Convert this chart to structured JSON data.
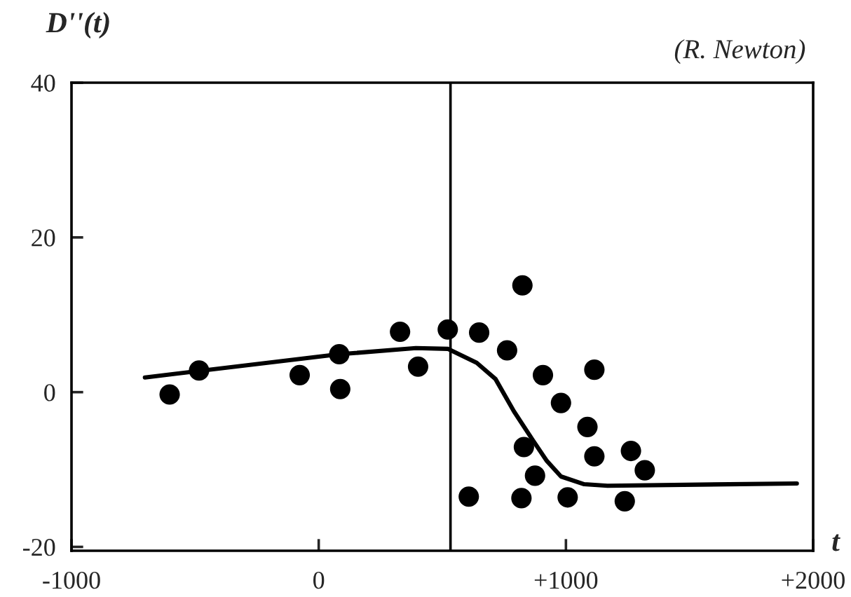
{
  "chart_data": {
    "type": "scatter",
    "ylabel": "D''(t)",
    "xlabel": "t",
    "annotations": [
      "(R. Newton)"
    ],
    "xlim": [
      -1000,
      2000
    ],
    "ylim": [
      -20.5,
      40
    ],
    "xticks": [
      -1000,
      0,
      {
        "value": 1000,
        "label": "+1000"
      },
      {
        "value": 2000,
        "label": "+2000"
      }
    ],
    "yticks": [
      -20,
      0,
      20,
      40
    ],
    "ref_lines": [
      {
        "axis": "x",
        "value": 533,
        "color": "#000000"
      }
    ],
    "series": [
      {
        "color": "#000000",
        "marker": "circle",
        "x": [
          -603,
          -484,
          -77,
          83,
          87,
          329,
          402,
          522,
          607,
          649,
          762,
          820,
          824,
          830,
          875,
          907,
          980,
          1007,
          1087,
          1115,
          1115,
          1238,
          1263,
          1319
        ],
        "values": [
          -0.3,
          2.8,
          2.2,
          4.9,
          0.4,
          7.8,
          3.3,
          8.1,
          -13.5,
          7.7,
          5.4,
          -13.7,
          13.8,
          -7.1,
          -10.8,
          2.2,
          -1.4,
          -13.6,
          -4.5,
          2.9,
          -8.3,
          -14.1,
          -7.6,
          -10.1
        ]
      },
      {
        "type": "line",
        "color": "#000000",
        "marker": "none",
        "line_style": "solid",
        "x": [
          -703,
          83,
          393,
          522,
          639,
          715,
          790,
          866,
          923,
          980,
          1074,
          1168,
          1934
        ],
        "values": [
          1.9,
          4.9,
          5.7,
          5.6,
          3.8,
          1.7,
          -2.5,
          -6.2,
          -8.9,
          -10.9,
          -11.9,
          -12.1,
          -11.8
        ]
      }
    ]
  }
}
